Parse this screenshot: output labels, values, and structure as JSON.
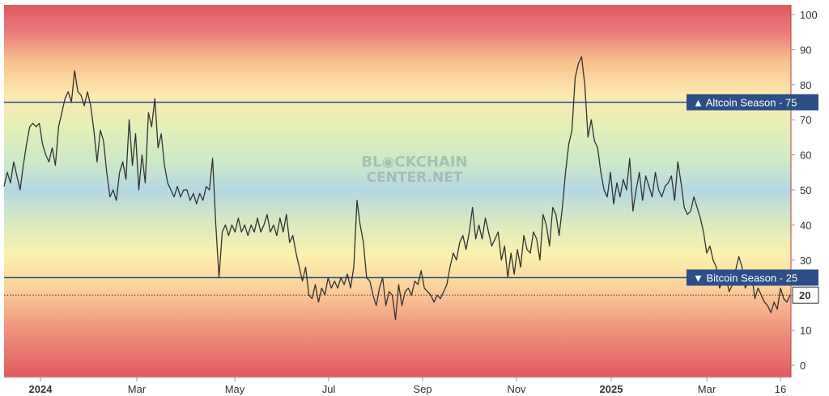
{
  "watermark": {
    "line1": "BL◉CKCHAIN",
    "line2": "CENTER.NET"
  },
  "chart_data": {
    "type": "line",
    "ylim": [
      -2,
      102
    ],
    "y_ticks": [
      0,
      10,
      20,
      30,
      40,
      50,
      60,
      70,
      80,
      90,
      100
    ],
    "x_ticks": [
      {
        "label": "2024",
        "bold": true
      },
      {
        "label": "Mar",
        "bold": false
      },
      {
        "label": "May",
        "bold": false
      },
      {
        "label": "Jul",
        "bold": false
      },
      {
        "label": "Sep",
        "bold": false
      },
      {
        "label": "Nov",
        "bold": false
      },
      {
        "label": "2025",
        "bold": true
      },
      {
        "label": "Mar",
        "bold": false
      },
      {
        "label": "16",
        "bold": false
      }
    ],
    "thresholds": [
      {
        "value": 75,
        "label": "▲ Altcoin Season - 75",
        "color": "#2b4f86"
      },
      {
        "value": 25,
        "label": "▼ Bitcoin Season - 25",
        "color": "#2b4f86"
      }
    ],
    "current": {
      "value": 20,
      "label": "20"
    },
    "values": [
      51,
      55,
      52,
      58,
      54,
      50,
      57,
      63,
      68,
      69,
      68,
      69,
      63,
      60,
      58,
      62,
      57,
      68,
      72,
      76,
      78,
      75,
      84,
      78,
      77,
      74,
      78,
      74,
      67,
      58,
      67,
      64,
      55,
      48,
      50,
      47,
      55,
      58,
      53,
      70,
      57,
      66,
      50,
      60,
      52,
      72,
      68,
      76,
      62,
      66,
      57,
      52,
      50,
      48,
      51,
      48,
      50,
      50,
      47,
      49,
      46,
      49,
      47,
      51,
      50,
      59,
      40,
      25,
      38,
      40,
      37,
      40,
      38,
      42,
      38,
      40,
      37,
      40,
      38,
      42,
      38,
      40,
      43,
      38,
      40,
      37,
      42,
      38,
      43,
      35,
      37,
      32,
      28,
      24,
      28,
      20,
      19,
      23,
      18,
      22,
      20,
      25,
      22,
      24,
      22,
      25,
      23,
      26,
      22,
      28,
      47,
      40,
      35,
      25,
      24,
      20,
      17,
      22,
      25,
      17,
      21,
      20,
      13,
      23,
      17,
      21,
      22,
      20,
      24,
      23,
      27,
      22,
      21,
      20,
      18,
      20,
      19,
      21,
      23,
      28,
      32,
      30,
      35,
      37,
      33,
      38,
      45,
      36,
      40,
      36,
      42,
      38,
      34,
      36,
      38,
      30,
      34,
      25,
      32,
      26,
      33,
      28,
      37,
      33,
      32,
      38,
      36,
      30,
      43,
      40,
      34,
      45,
      43,
      37,
      45,
      55,
      63,
      67,
      82,
      86,
      88,
      80,
      65,
      70,
      64,
      62,
      55,
      50,
      48,
      55,
      46,
      52,
      48,
      53,
      50,
      59,
      44,
      50,
      55,
      47,
      54,
      51,
      48,
      55,
      50,
      48,
      51,
      52,
      54,
      47,
      58,
      52,
      45,
      43,
      44,
      48,
      45,
      42,
      38,
      32,
      34,
      30,
      28,
      22,
      24,
      25,
      21,
      23,
      27,
      31,
      28,
      22,
      24,
      26,
      19,
      22,
      20,
      18,
      17,
      15,
      18,
      16,
      22,
      19,
      18,
      20
    ]
  }
}
